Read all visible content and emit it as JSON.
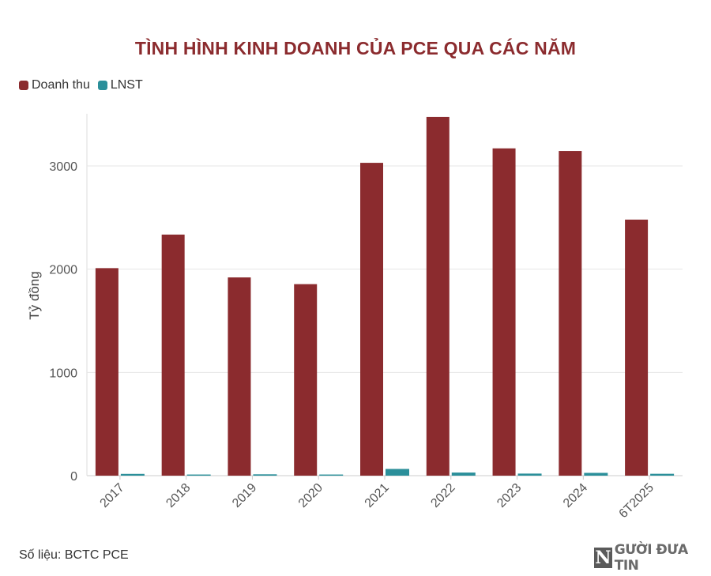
{
  "chart_data": {
    "type": "bar",
    "title": "TÌNH HÌNH KINH DOANH CỦA PCE QUA CÁC NĂM",
    "ylabel": "Tỷ đồng",
    "xlabel": "",
    "categories": [
      "2017",
      "2018",
      "2019",
      "2020",
      "2021",
      "2022",
      "2023",
      "2024",
      "6T2025"
    ],
    "series": [
      {
        "name": "Doanh thu",
        "color": "#8b2b2e",
        "values": [
          2010,
          2335,
          1920,
          1855,
          3030,
          3475,
          3170,
          3145,
          2480
        ]
      },
      {
        "name": "LNST",
        "color": "#2b8f9a",
        "values": [
          17,
          11,
          13,
          11,
          65,
          30,
          20,
          27,
          18
        ]
      }
    ],
    "ylim": [
      0,
      3500
    ],
    "yticks": [
      0,
      1000,
      2000,
      3000
    ],
    "ytick_labels": [
      "0",
      "1000",
      "2000",
      "3000"
    ],
    "grid": true,
    "legend_position": "top-left"
  },
  "footer": {
    "source": "Số liệu: BCTC PCE",
    "logo_letter": "N",
    "logo_text": "GƯỜI ĐƯA TIN"
  }
}
